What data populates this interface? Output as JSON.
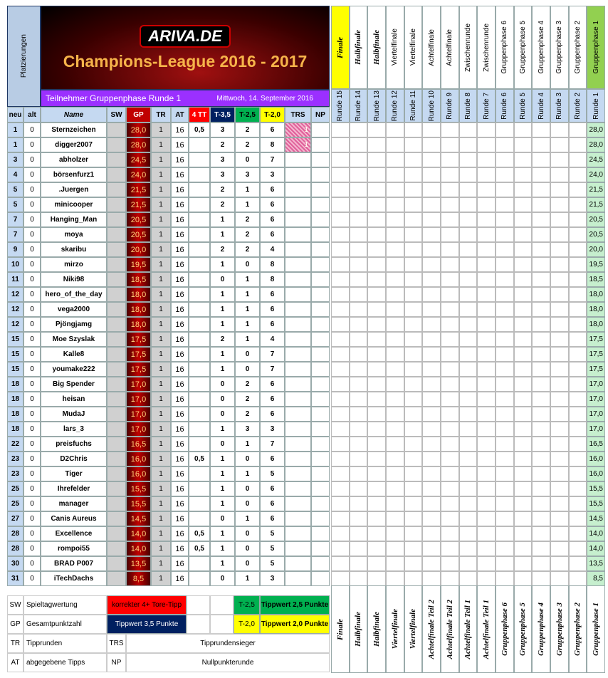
{
  "header": {
    "logo": "ARIVA.DE",
    "title": "Champions-League 2016 - 2017",
    "side_label": "Platzierungen",
    "subtitle": "Teilnehmer Gruppenphase Runde 1",
    "date": "Mittwoch, 14. September 2016"
  },
  "table": {
    "columns": [
      "neu",
      "alt",
      "Name",
      "SW",
      "GP",
      "TR",
      "AT",
      "4 TT",
      "T-3,5",
      "T-2,5",
      "T-2,0",
      "TRS",
      "NP"
    ],
    "rows": [
      {
        "neu": 1,
        "alt": 0,
        "name": "Sternzeichen",
        "gp": "28,0",
        "tr": 1,
        "at": 16,
        "tt4": "0,5",
        "t35": 3,
        "t25": 2,
        "t20": 6,
        "trs": 1
      },
      {
        "neu": 1,
        "alt": 0,
        "name": "digger2007",
        "gp": "28,0",
        "tr": 1,
        "at": 16,
        "t35": 2,
        "t25": 2,
        "t20": 8,
        "trs": 1
      },
      {
        "neu": 3,
        "alt": 0,
        "name": "abholzer",
        "gp": "24,5",
        "tr": 1,
        "at": 16,
        "t35": 3,
        "t25": 0,
        "t20": 7
      },
      {
        "neu": 4,
        "alt": 0,
        "name": "börsenfurz1",
        "gp": "24,0",
        "tr": 1,
        "at": 16,
        "t35": 3,
        "t25": 3,
        "t20": 3
      },
      {
        "neu": 5,
        "alt": 0,
        "name": ".Juergen",
        "gp": "21,5",
        "tr": 1,
        "at": 16,
        "t35": 2,
        "t25": 1,
        "t20": 6
      },
      {
        "neu": 5,
        "alt": 0,
        "name": "minicooper",
        "gp": "21,5",
        "tr": 1,
        "at": 16,
        "t35": 2,
        "t25": 1,
        "t20": 6
      },
      {
        "neu": 7,
        "alt": 0,
        "name": "Hanging_Man",
        "gp": "20,5",
        "tr": 1,
        "at": 16,
        "t35": 1,
        "t25": 2,
        "t20": 6
      },
      {
        "neu": 7,
        "alt": 0,
        "name": "moya",
        "gp": "20,5",
        "tr": 1,
        "at": 16,
        "t35": 1,
        "t25": 2,
        "t20": 6
      },
      {
        "neu": 9,
        "alt": 0,
        "name": "skaribu",
        "gp": "20,0",
        "tr": 1,
        "at": 16,
        "t35": 2,
        "t25": 2,
        "t20": 4
      },
      {
        "neu": 10,
        "alt": 0,
        "name": "mirzo",
        "gp": "19,5",
        "tr": 1,
        "at": 16,
        "t35": 1,
        "t25": 0,
        "t20": 8
      },
      {
        "neu": 11,
        "alt": 0,
        "name": "Niki98",
        "gp": "18,5",
        "tr": 1,
        "at": 16,
        "t35": 0,
        "t25": 1,
        "t20": 8
      },
      {
        "neu": 12,
        "alt": 0,
        "name": "hero_of_the_day",
        "gp": "18,0",
        "tr": 1,
        "at": 16,
        "t35": 1,
        "t25": 1,
        "t20": 6
      },
      {
        "neu": 12,
        "alt": 0,
        "name": "vega2000",
        "gp": "18,0",
        "tr": 1,
        "at": 16,
        "t35": 1,
        "t25": 1,
        "t20": 6
      },
      {
        "neu": 12,
        "alt": 0,
        "name": "Pjöngjamg",
        "gp": "18,0",
        "tr": 1,
        "at": 16,
        "t35": 1,
        "t25": 1,
        "t20": 6
      },
      {
        "neu": 15,
        "alt": 0,
        "name": "Moe Szyslak",
        "gp": "17,5",
        "tr": 1,
        "at": 16,
        "t35": 2,
        "t25": 1,
        "t20": 4
      },
      {
        "neu": 15,
        "alt": 0,
        "name": "Kalle8",
        "gp": "17,5",
        "tr": 1,
        "at": 16,
        "t35": 1,
        "t25": 0,
        "t20": 7
      },
      {
        "neu": 15,
        "alt": 0,
        "name": "youmake222",
        "gp": "17,5",
        "tr": 1,
        "at": 16,
        "t35": 1,
        "t25": 0,
        "t20": 7
      },
      {
        "neu": 18,
        "alt": 0,
        "name": "Big Spender",
        "gp": "17,0",
        "tr": 1,
        "at": 16,
        "t35": 0,
        "t25": 2,
        "t20": 6
      },
      {
        "neu": 18,
        "alt": 0,
        "name": "heisan",
        "gp": "17,0",
        "tr": 1,
        "at": 16,
        "t35": 0,
        "t25": 2,
        "t20": 6
      },
      {
        "neu": 18,
        "alt": 0,
        "name": "MudaJ",
        "gp": "17,0",
        "tr": 1,
        "at": 16,
        "t35": 0,
        "t25": 2,
        "t20": 6
      },
      {
        "neu": 18,
        "alt": 0,
        "name": "lars_3",
        "gp": "17,0",
        "tr": 1,
        "at": 16,
        "t35": 1,
        "t25": 3,
        "t20": 3
      },
      {
        "neu": 22,
        "alt": 0,
        "name": "preisfuchs",
        "gp": "16,5",
        "tr": 1,
        "at": 16,
        "t35": 0,
        "t25": 1,
        "t20": 7
      },
      {
        "neu": 23,
        "alt": 0,
        "name": "D2Chris",
        "gp": "16,0",
        "tr": 1,
        "at": 16,
        "tt4": "0,5",
        "t35": 1,
        "t25": 0,
        "t20": 6
      },
      {
        "neu": 23,
        "alt": 0,
        "name": "Tiger",
        "gp": "16,0",
        "tr": 1,
        "at": 16,
        "t35": 1,
        "t25": 1,
        "t20": 5
      },
      {
        "neu": 25,
        "alt": 0,
        "name": "Ihrefelder",
        "gp": "15,5",
        "tr": 1,
        "at": 16,
        "t35": 1,
        "t25": 0,
        "t20": 6
      },
      {
        "neu": 25,
        "alt": 0,
        "name": "manager",
        "gp": "15,5",
        "tr": 1,
        "at": 16,
        "t35": 1,
        "t25": 0,
        "t20": 6
      },
      {
        "neu": 27,
        "alt": 0,
        "name": "Canis Aureus",
        "gp": "14,5",
        "tr": 1,
        "at": 16,
        "t35": 0,
        "t25": 1,
        "t20": 6
      },
      {
        "neu": 28,
        "alt": 0,
        "name": "Excellence",
        "gp": "14,0",
        "tr": 1,
        "at": 16,
        "tt4": "0,5",
        "t35": 1,
        "t25": 0,
        "t20": 5
      },
      {
        "neu": 28,
        "alt": 0,
        "name": "rompoi55",
        "gp": "14,0",
        "tr": 1,
        "at": 16,
        "tt4": "0,5",
        "t35": 1,
        "t25": 0,
        "t20": 5
      },
      {
        "neu": 30,
        "alt": 0,
        "name": "BRAD P007",
        "gp": "13,5",
        "tr": 1,
        "at": 16,
        "t35": 1,
        "t25": 0,
        "t20": 5
      },
      {
        "neu": 31,
        "alt": 0,
        "name": "iTechDachs",
        "gp": "8,5",
        "tr": 1,
        "at": 16,
        "t35": 0,
        "t25": 1,
        "t20": 3
      }
    ]
  },
  "rounds": {
    "phases": [
      "Finale",
      "Halbfinale",
      "Halbfinale",
      "Viertelfinale",
      "Viertelfinale",
      "Achtelfinale",
      "Achtelfinale",
      "Zwischenrunde",
      "Zwischenrunde",
      "Gruppenphase 6",
      "Gruppenphase 5",
      "Gruppenphase 4",
      "Gruppenphase 3",
      "Gruppenphase 2",
      "Gruppenphase 1"
    ],
    "labels": [
      "Runde 15",
      "Runde 14",
      "Runde 13",
      "Runde 12",
      "Runde 11",
      "Runde 10",
      "Runde 9",
      "Runde 8",
      "Runde 7",
      "Runde 6",
      "Runde 5",
      "Runde 4",
      "Runde 3",
      "Runde 2",
      "Runde 1"
    ],
    "footer": [
      "Finale",
      "Halbfinale",
      "Halbfinale",
      "Viertelfinale",
      "Viertelfinale",
      "Achtelfinale Teil 2",
      "Achtelfinale Teil 2",
      "Achtelfinale Teil 1",
      "Achtelfinale Teil 1",
      "Gruppenphase 6",
      "Gruppenphase 5",
      "Gruppenphase 4",
      "Gruppenphase 3",
      "Gruppenphase 2",
      "Gruppenphase 1"
    ]
  },
  "legend": {
    "rows": [
      {
        "abbr": "SW",
        "text": "Spieltagwertung",
        "key": "korrekter 4+ Tore-Tipp",
        "tag": "T-2,5",
        "tag_text": "Tippwert 2,5 Punkte"
      },
      {
        "abbr": "GP",
        "text": "Gesamtpunktzahl",
        "key": "Tippwert 3,5 Punkte",
        "tag": "T-2,0",
        "tag_text": "Tippwert 2,0 Punkte"
      },
      {
        "abbr": "TR",
        "text": "Tipprunden",
        "abbr2": "TRS",
        "text2": "Tipprundensieger"
      },
      {
        "abbr": "AT",
        "text": "abgegebene Tipps",
        "abbr2": "NP",
        "text2": "Nullpunkterunde"
      }
    ]
  }
}
